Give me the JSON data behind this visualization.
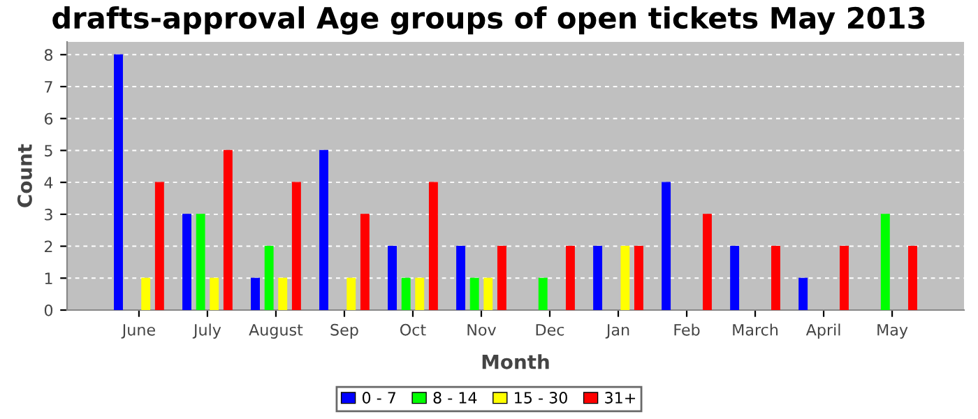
{
  "chart_data": {
    "type": "bar",
    "title": "drafts-approval Age groups of open tickets May 2013",
    "xlabel": "Month",
    "ylabel": "Count",
    "categories": [
      "June",
      "July",
      "August",
      "Sep",
      "Oct",
      "Nov",
      "Dec",
      "Jan",
      "Feb",
      "March",
      "April",
      "May"
    ],
    "series": [
      {
        "name": "0 - 7",
        "color": "#0000ff",
        "values": [
          8,
          3,
          1,
          5,
          2,
          2,
          0,
          2,
          4,
          2,
          1,
          0
        ]
      },
      {
        "name": "8 - 14",
        "color": "#00ff00",
        "values": [
          0,
          3,
          2,
          0,
          1,
          1,
          1,
          0,
          0,
          0,
          0,
          3
        ]
      },
      {
        "name": "15 - 30",
        "color": "#ffff00",
        "values": [
          1,
          1,
          1,
          1,
          1,
          1,
          0,
          2,
          0,
          0,
          0,
          0
        ]
      },
      {
        "name": "31+",
        "color": "#ff0000",
        "values": [
          4,
          5,
          4,
          3,
          4,
          2,
          2,
          2,
          3,
          2,
          2,
          2
        ]
      }
    ],
    "ylim": [
      0,
      8.4
    ],
    "yticks": [
      0,
      1,
      2,
      3,
      4,
      5,
      6,
      7,
      8
    ],
    "grid": "y",
    "legend": "bottom"
  }
}
